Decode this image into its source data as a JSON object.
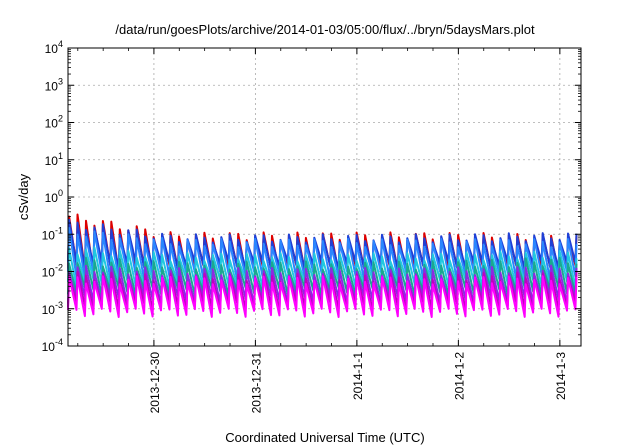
{
  "chart_data": {
    "type": "line",
    "title": "/data/run/goesPlots/archive/2014-01-03/05:00/flux/../bryn/5daysMars.plot",
    "xlabel": "Coordinated Universal Time (UTC)",
    "ylabel": "cSv/day",
    "yscale": "log",
    "ylim": [
      0.0001,
      10000
    ],
    "xlim": [
      "2013-12-29T03:41",
      "2014-01-03T05:00"
    ],
    "y_ticks": [
      {
        "base": "10",
        "exp": "-4",
        "value": 0.0001
      },
      {
        "base": "10",
        "exp": "-3",
        "value": 0.001
      },
      {
        "base": "10",
        "exp": "-2",
        "value": 0.01
      },
      {
        "base": "10",
        "exp": "-1",
        "value": 0.1
      },
      {
        "base": "10",
        "exp": "0",
        "value": 1
      },
      {
        "base": "10",
        "exp": "1",
        "value": 10
      },
      {
        "base": "10",
        "exp": "2",
        "value": 100
      },
      {
        "base": "10",
        "exp": "3",
        "value": 1000
      },
      {
        "base": "10",
        "exp": "4",
        "value": 10000
      }
    ],
    "x_ticks": [
      {
        "label": "2013-12-30",
        "date": "2013-12-30T00:00"
      },
      {
        "label": "2013-12-31",
        "date": "2013-12-31T00:00"
      },
      {
        "label": "2014-1-1",
        "date": "2014-01-01T00:00"
      },
      {
        "label": "2014-1-2",
        "date": "2014-01-02T00:00"
      },
      {
        "label": "2014-1-3",
        "date": "2014-01-03T00:00"
      }
    ],
    "grid": true,
    "legend": "none",
    "sawtooth_period_hours": 2,
    "series": [
      {
        "color": "#dd0000",
        "early_peak": 0.3,
        "peak": 0.09,
        "trough": 0.012,
        "late_peak": 0.08
      },
      {
        "color": "#1f3fd6",
        "early_peak": 0.2,
        "peak": 0.08,
        "trough": 0.015,
        "late_peak": 0.09
      },
      {
        "color": "#2a86ff",
        "early_peak": 0.12,
        "peak": 0.06,
        "trough": 0.008,
        "late_peak": 0.06
      },
      {
        "color": "#20c8e0",
        "early_peak": 0.04,
        "peak": 0.025,
        "trough": 0.005,
        "late_peak": 0.03
      },
      {
        "color": "#1aa890",
        "early_peak": 0.02,
        "peak": 0.015,
        "trough": 0.003,
        "late_peak": 0.02
      },
      {
        "color": "#8a2be2",
        "early_peak": 0.012,
        "peak": 0.01,
        "trough": 0.0018,
        "late_peak": 0.012
      },
      {
        "color": "#c000c0",
        "early_peak": 0.008,
        "peak": 0.007,
        "trough": 0.0012,
        "late_peak": 0.008
      },
      {
        "color": "#ff00ff",
        "early_peak": 0.006,
        "peak": 0.006,
        "trough": 0.0008,
        "late_peak": 0.006
      }
    ]
  }
}
